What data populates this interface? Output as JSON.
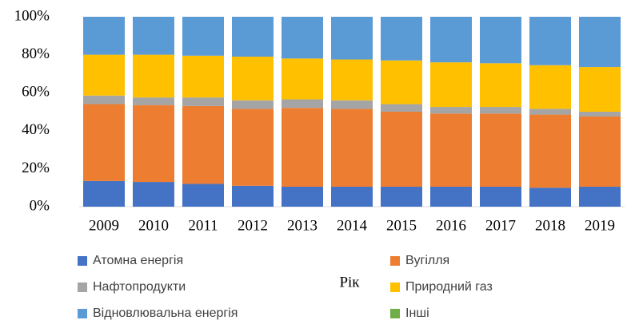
{
  "chart_data": {
    "type": "bar",
    "stacked": true,
    "x_label": "Рік",
    "categories": [
      "2009",
      "2010",
      "2011",
      "2012",
      "2013",
      "2014",
      "2015",
      "2016",
      "2017",
      "2018",
      "2019"
    ],
    "series": [
      {
        "name": "Атомна енергія",
        "color": "#4472c4",
        "values": [
          13.5,
          13,
          12,
          11,
          10.5,
          10.5,
          10.5,
          10.5,
          10.5,
          10,
          10.5
        ]
      },
      {
        "name": "Вугілля",
        "color": "#ed7d31",
        "values": [
          40.5,
          40.5,
          41,
          40.5,
          41.5,
          41,
          39.5,
          38.5,
          38.5,
          38.5,
          37
        ]
      },
      {
        "name": "Нафтопродукти",
        "color": "#a5a5a5",
        "values": [
          4.5,
          4,
          4.5,
          4.5,
          4.5,
          4.5,
          4,
          3.5,
          3.5,
          3,
          2.5
        ]
      },
      {
        "name": "Природний газ",
        "color": "#ffc000",
        "values": [
          21.5,
          22.5,
          22,
          23,
          21.5,
          21.5,
          23,
          23.5,
          23,
          23,
          23.5
        ]
      },
      {
        "name": "Відновлювальна енергія",
        "color": "#5b9bd5",
        "values": [
          20,
          20,
          20.5,
          21,
          22,
          22.5,
          23,
          24,
          24.5,
          25.5,
          26.5
        ]
      },
      {
        "name": "Інші",
        "color": "#70ad47",
        "values": [
          0,
          0,
          0,
          0,
          0,
          0,
          0,
          0,
          0,
          0,
          0
        ]
      }
    ],
    "ylim": [
      0,
      100
    ],
    "yticks": [
      {
        "value": 0,
        "label": "0%"
      },
      {
        "value": 20,
        "label": "20%"
      },
      {
        "value": 40,
        "label": "40%"
      },
      {
        "value": 60,
        "label": "60%"
      },
      {
        "value": 80,
        "label": "80%"
      },
      {
        "value": 100,
        "label": "100%"
      }
    ],
    "grid": false
  }
}
